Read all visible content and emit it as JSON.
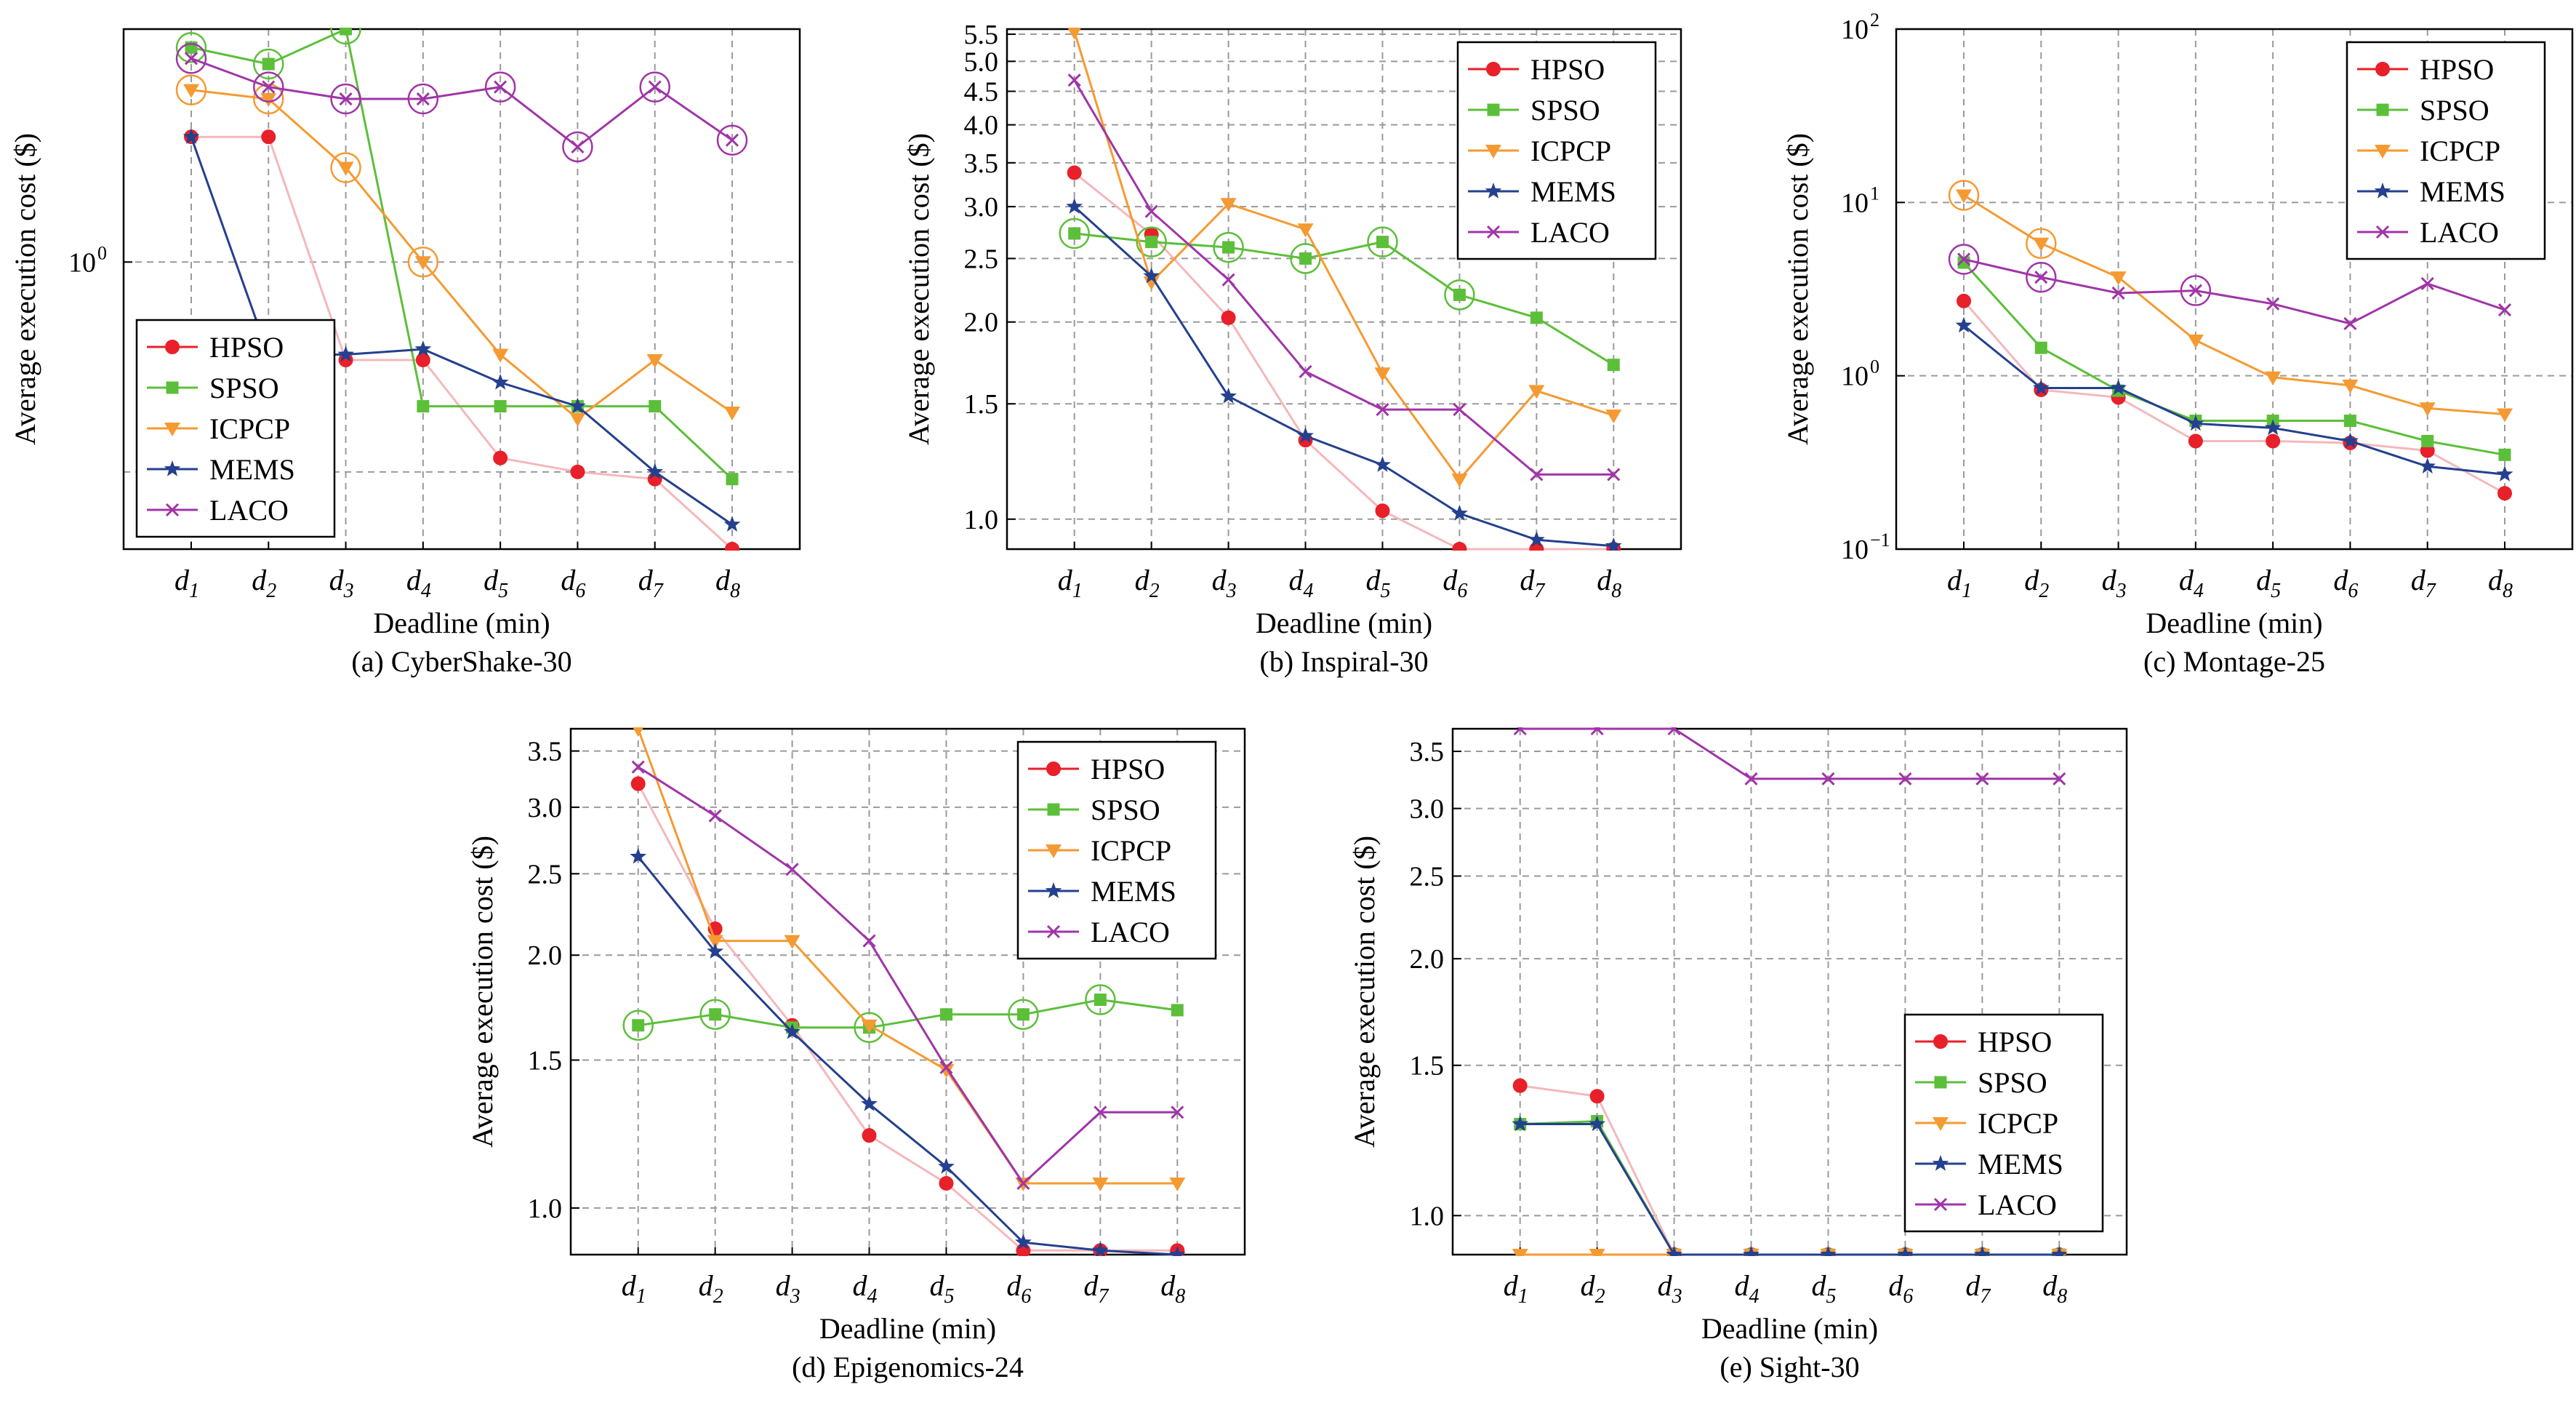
{
  "series_styles": [
    {
      "name": "HPSO",
      "color": "#e8202a",
      "marker": "circle"
    },
    {
      "name": "SPSO",
      "color": "#5cbf3a",
      "marker": "square"
    },
    {
      "name": "ICPCP",
      "color": "#f59a32",
      "marker": "triangle-down"
    },
    {
      "name": "MEMS",
      "color": "#24408e",
      "marker": "star"
    },
    {
      "name": "LACO",
      "color": "#a035a8",
      "marker": "x"
    }
  ],
  "chart_data": [
    {
      "type": "line",
      "title": "(a) CyberShake-30",
      "xlabel": "Deadline (min)",
      "ylabel": "Average execution cost ($)",
      "scale": "log",
      "ylim": [
        0.52,
        1.7
      ],
      "x": [
        "1",
        "2",
        "3",
        "4",
        "5",
        "6",
        "7",
        "8"
      ],
      "x_tick_base": "d",
      "yticks": [
        {
          "v": 1.0,
          "label": "10",
          "sup": "0"
        }
      ],
      "ygrid": [
        1.0,
        0.62
      ],
      "legend": "bottom-left",
      "series": [
        {
          "name": "HPSO",
          "values": [
            1.33,
            1.33,
            0.8,
            0.8,
            0.64,
            0.62,
            0.61,
            0.52
          ],
          "circled": []
        },
        {
          "name": "SPSO",
          "values": [
            1.63,
            1.57,
            1.73,
            0.72,
            0.72,
            0.72,
            0.72,
            0.61
          ],
          "circled": [
            0,
            1,
            2
          ]
        },
        {
          "name": "ICPCP",
          "values": [
            1.48,
            1.45,
            1.24,
            1.0,
            0.81,
            0.7,
            0.8,
            0.71
          ],
          "circled": [
            0,
            1,
            2,
            3
          ]
        },
        {
          "name": "MEMS",
          "values": [
            1.33,
            0.81,
            0.81,
            0.82,
            0.76,
            0.72,
            0.62,
            0.55
          ],
          "circled": []
        },
        {
          "name": "LACO",
          "values": [
            1.59,
            1.49,
            1.45,
            1.45,
            1.49,
            1.3,
            1.49,
            1.32
          ],
          "circled": [
            0,
            1,
            2,
            3,
            4,
            5,
            6,
            7
          ]
        }
      ],
      "extra_circles": [
        {
          "series": "ICPCP",
          "indices": [
            4,
            6,
            7
          ]
        },
        {
          "series": "ICPCP_b",
          "indices": []
        }
      ]
    },
    {
      "type": "line",
      "title": "(b) Inspiral-30",
      "xlabel": "Deadline (min)",
      "ylabel": "Average execution cost ($)",
      "scale": "log",
      "ylim": [
        0.9,
        5.6
      ],
      "x": [
        "1",
        "2",
        "3",
        "4",
        "5",
        "6",
        "7",
        "8"
      ],
      "x_tick_base": "d",
      "yticks": [
        {
          "v": 1.0,
          "label": "1.0"
        },
        {
          "v": 1.5,
          "label": "1.5"
        },
        {
          "v": 2.0,
          "label": "2.0"
        },
        {
          "v": 2.5,
          "label": "2.5"
        },
        {
          "v": 3.0,
          "label": "3.0"
        },
        {
          "v": 3.5,
          "label": "3.5"
        },
        {
          "v": 4.0,
          "label": "4.0"
        },
        {
          "v": 4.5,
          "label": "4.5"
        },
        {
          "v": 5.0,
          "label": "5.0"
        },
        {
          "v": 5.5,
          "label": "5.5"
        }
      ],
      "ygrid": [
        1.0,
        1.5,
        2.0,
        2.5,
        3.0,
        3.5,
        4.0,
        4.5,
        5.0,
        5.5
      ],
      "legend": "top-right",
      "series": [
        {
          "name": "HPSO",
          "values": [
            3.38,
            2.72,
            2.03,
            1.32,
            1.03,
            0.9,
            0.9,
            0.9
          ],
          "circled": []
        },
        {
          "name": "SPSO",
          "values": [
            2.73,
            2.65,
            2.6,
            2.5,
            2.65,
            2.2,
            2.03,
            1.72
          ],
          "circled": [
            0,
            1,
            2,
            3,
            4,
            5
          ]
        },
        {
          "name": "ICPCP",
          "values": [
            5.55,
            2.3,
            3.03,
            2.77,
            1.67,
            1.15,
            1.57,
            1.44
          ],
          "circled": []
        },
        {
          "name": "MEMS",
          "values": [
            3.0,
            2.35,
            1.54,
            1.34,
            1.21,
            1.02,
            0.93,
            0.91
          ],
          "circled": []
        },
        {
          "name": "LACO",
          "values": [
            4.68,
            2.95,
            2.32,
            1.68,
            1.47,
            1.47,
            1.17,
            1.17
          ],
          "circled": []
        }
      ],
      "extra_circles": [
        {
          "series": "ICPCP_blue",
          "indices": [
            0,
            1,
            2,
            3
          ]
        }
      ]
    },
    {
      "type": "line",
      "title": "(c) Montage-25",
      "xlabel": "Deadline (min)",
      "ylabel": "Average execution cost ($)",
      "scale": "log",
      "ylim": [
        0.1,
        100
      ],
      "x": [
        "1",
        "2",
        "3",
        "4",
        "5",
        "6",
        "7",
        "8"
      ],
      "x_tick_base": "d",
      "yticks": [
        {
          "v": 0.1,
          "label": "10",
          "sup": "−1"
        },
        {
          "v": 1.0,
          "label": "10",
          "sup": "0"
        },
        {
          "v": 10,
          "label": "10",
          "sup": "1"
        },
        {
          "v": 100,
          "label": "10",
          "sup": "2"
        }
      ],
      "ygrid": [
        1.0,
        10
      ],
      "legend": "top-right",
      "series": [
        {
          "name": "HPSO",
          "values": [
            2.7,
            0.83,
            0.75,
            0.42,
            0.42,
            0.41,
            0.37,
            0.21
          ],
          "circled": []
        },
        {
          "name": "SPSO",
          "values": [
            4.5,
            1.45,
            0.82,
            0.55,
            0.55,
            0.55,
            0.42,
            0.35
          ],
          "circled": []
        },
        {
          "name": "ICPCP",
          "values": [
            11,
            5.8,
            3.7,
            1.6,
            0.98,
            0.88,
            0.65,
            0.6
          ],
          "circled": [
            0,
            1
          ]
        },
        {
          "name": "MEMS",
          "values": [
            1.95,
            0.85,
            0.85,
            0.53,
            0.5,
            0.42,
            0.3,
            0.27
          ],
          "circled": []
        },
        {
          "name": "LACO",
          "values": [
            4.7,
            3.7,
            3.0,
            3.1,
            2.6,
            2.0,
            3.4,
            2.4
          ],
          "circled": [
            0,
            1,
            3
          ]
        }
      ],
      "extra_circles": [
        {
          "series": "ICPCP_blue",
          "indices": [
            0,
            1,
            2
          ]
        }
      ]
    },
    {
      "type": "line",
      "title": "(d) Epigenomics-24",
      "xlabel": "Deadline (min)",
      "ylabel": "Average execution cost ($)",
      "scale": "log",
      "ylim": [
        0.88,
        3.72
      ],
      "x": [
        "1",
        "2",
        "3",
        "4",
        "5",
        "6",
        "7",
        "8"
      ],
      "x_tick_base": "d",
      "yticks": [
        {
          "v": 1.0,
          "label": "1.0"
        },
        {
          "v": 1.5,
          "label": "1.5"
        },
        {
          "v": 2.0,
          "label": "2.0"
        },
        {
          "v": 2.5,
          "label": "2.5"
        },
        {
          "v": 3.0,
          "label": "3.0"
        },
        {
          "v": 3.5,
          "label": "3.5"
        }
      ],
      "ygrid": [
        1.0,
        1.5,
        2.0,
        2.5,
        3.0,
        3.5
      ],
      "legend": "top-right",
      "series": [
        {
          "name": "HPSO",
          "values": [
            3.2,
            2.15,
            1.65,
            1.22,
            1.07,
            0.89,
            0.89,
            0.89
          ],
          "circled": []
        },
        {
          "name": "SPSO",
          "values": [
            1.65,
            1.7,
            1.64,
            1.64,
            1.7,
            1.7,
            1.77,
            1.72
          ],
          "circled": [
            0,
            1,
            3,
            5,
            6
          ]
        },
        {
          "name": "ICPCP",
          "values": [
            3.72,
            2.08,
            2.08,
            1.65,
            1.46,
            1.07,
            1.07,
            1.07
          ],
          "circled": []
        },
        {
          "name": "MEMS",
          "values": [
            2.62,
            2.02,
            1.62,
            1.33,
            1.12,
            0.91,
            0.89,
            0.88
          ],
          "circled": []
        },
        {
          "name": "LACO",
          "values": [
            3.35,
            2.93,
            2.53,
            2.08,
            1.47,
            1.07,
            1.3,
            1.3
          ],
          "circled": []
        }
      ],
      "extra_circles": [
        {
          "series": "ICPCP_blue",
          "indices": [
            0,
            1,
            2,
            3,
            4
          ]
        }
      ]
    },
    {
      "type": "line",
      "title": "(e) Sight-30",
      "xlabel": "Deadline (min)",
      "ylabel": "Average execution cost ($)",
      "scale": "log",
      "ylim": [
        0.9,
        3.72
      ],
      "x": [
        "1",
        "2",
        "3",
        "4",
        "5",
        "6",
        "7",
        "8"
      ],
      "x_tick_base": "d",
      "yticks": [
        {
          "v": 1.0,
          "label": "1.0"
        },
        {
          "v": 1.5,
          "label": "1.5"
        },
        {
          "v": 2.0,
          "label": "2.0"
        },
        {
          "v": 2.5,
          "label": "2.5"
        },
        {
          "v": 3.0,
          "label": "3.0"
        },
        {
          "v": 3.5,
          "label": "3.5"
        }
      ],
      "ygrid": [
        1.0,
        1.5,
        2.0,
        2.5,
        3.0,
        3.5
      ],
      "legend": "bottom-right",
      "series": [
        {
          "name": "HPSO",
          "values": [
            1.42,
            1.38,
            0.9,
            0.9,
            0.9,
            0.9,
            0.9,
            0.9
          ],
          "circled": []
        },
        {
          "name": "SPSO",
          "values": [
            1.28,
            1.29,
            0.9,
            0.9,
            0.9,
            0.9,
            0.9,
            0.9
          ],
          "circled": []
        },
        {
          "name": "ICPCP",
          "values": [
            0.9,
            0.9,
            0.9,
            0.9,
            0.9,
            0.9,
            0.9,
            0.9
          ],
          "circled": []
        },
        {
          "name": "MEMS",
          "values": [
            1.28,
            1.28,
            0.9,
            0.9,
            0.9,
            0.9,
            0.9,
            0.9
          ],
          "circled": []
        },
        {
          "name": "LACO",
          "values": [
            3.72,
            3.72,
            3.72,
            3.25,
            3.25,
            3.25,
            3.25,
            3.25
          ],
          "circled": []
        }
      ],
      "extra_circles": [
        {
          "series": "ICPCP_blue",
          "indices": [
            0,
            1,
            4
          ]
        }
      ]
    }
  ]
}
